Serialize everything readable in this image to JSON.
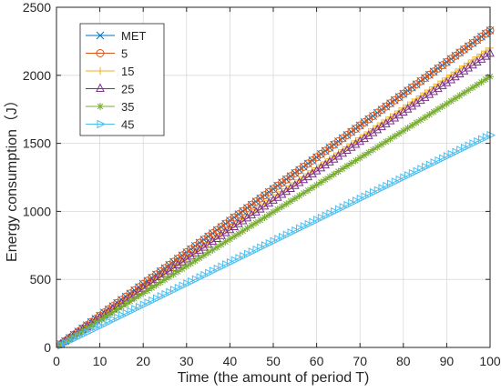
{
  "chart_data": {
    "type": "line",
    "title": "",
    "xlabel": "Time (the amount of period T)",
    "ylabel": "Energy consumption（J）",
    "xlim": [
      0,
      100
    ],
    "ylim": [
      0,
      2500
    ],
    "xticks": [
      0,
      10,
      20,
      30,
      40,
      50,
      60,
      70,
      80,
      90,
      100
    ],
    "yticks": [
      0,
      500,
      1000,
      1500,
      2000,
      2500
    ],
    "grid": true,
    "legend_position": "top-left",
    "x": [
      1,
      2,
      3,
      4,
      5,
      6,
      7,
      8,
      9,
      10,
      11,
      12,
      13,
      14,
      15,
      16,
      17,
      18,
      19,
      20,
      21,
      22,
      23,
      24,
      25,
      26,
      27,
      28,
      29,
      30,
      31,
      32,
      33,
      34,
      35,
      36,
      37,
      38,
      39,
      40,
      41,
      42,
      43,
      44,
      45,
      46,
      47,
      48,
      49,
      50,
      51,
      52,
      53,
      54,
      55,
      56,
      57,
      58,
      59,
      60,
      61,
      62,
      63,
      64,
      65,
      66,
      67,
      68,
      69,
      70,
      71,
      72,
      73,
      74,
      75,
      76,
      77,
      78,
      79,
      80,
      81,
      82,
      83,
      84,
      85,
      86,
      87,
      88,
      89,
      90,
      91,
      92,
      93,
      94,
      95,
      96,
      97,
      98,
      99,
      100
    ],
    "series": [
      {
        "name": "MET",
        "marker": "x",
        "color": "#0072BD",
        "slope": 23.3
      },
      {
        "name": "5",
        "marker": "o",
        "color": "#D95319",
        "slope": 23.3
      },
      {
        "name": "15",
        "marker": "+",
        "color": "#EDB120",
        "slope": 22.0
      },
      {
        "name": "25",
        "marker": "^",
        "color": "#7E2F8E",
        "slope": 21.6
      },
      {
        "name": "35",
        "marker": "*",
        "color": "#77AC30",
        "slope": 19.9
      },
      {
        "name": "45",
        "marker": ">",
        "color": "#4DBEEE",
        "slope": 15.6
      }
    ]
  }
}
